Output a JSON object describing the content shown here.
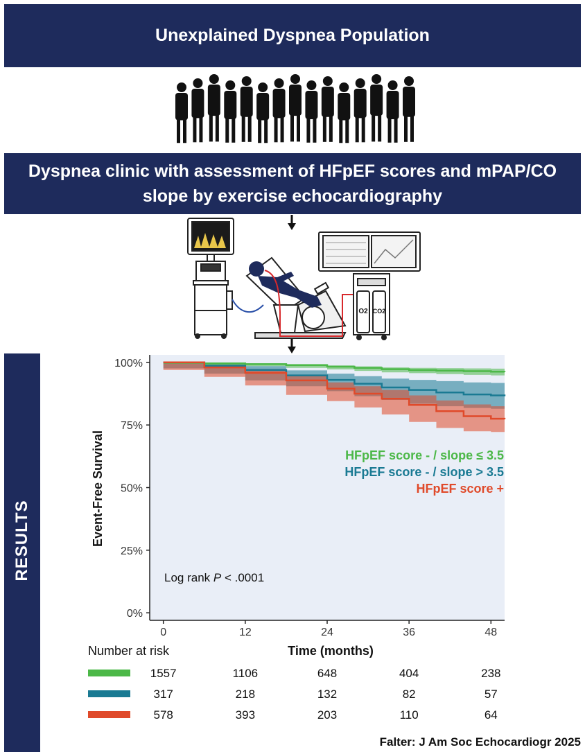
{
  "header": {
    "title": "Unexplained Dyspnea Population",
    "subtitle": "Dyspnea clinic with assessment of HFpEF scores and mPAP/CO slope by exercise echocardiography"
  },
  "section_label": "RESULTS",
  "illustration": {
    "people_count": 15,
    "gas_labels": [
      "O2",
      "CO2"
    ]
  },
  "chart_data": {
    "type": "line",
    "title": "",
    "xlabel": "Time (months)",
    "ylabel": "Event-Free Survival",
    "xlim": [
      -2,
      50
    ],
    "ylim": [
      -3,
      103
    ],
    "x_ticks": [
      0,
      12,
      24,
      36,
      48
    ],
    "y_ticks": [
      0,
      25,
      50,
      75,
      100
    ],
    "y_tick_labels": [
      "0%",
      "25%",
      "50%",
      "75%",
      "100%"
    ],
    "annotation": {
      "text_prefix": "Log rank ",
      "text_italic": "P",
      "text_suffix": " < .0001"
    },
    "series": [
      {
        "name": "HFpEF score - / slope ≤ 3.5",
        "color": "#4cb848",
        "x": [
          0,
          6,
          12,
          18,
          24,
          28,
          32,
          36,
          40,
          44,
          48,
          50
        ],
        "values": [
          100,
          99.6,
          99.3,
          98.9,
          98.3,
          97.8,
          97.3,
          96.9,
          96.7,
          96.5,
          96.3,
          96.2
        ],
        "lower": [
          100,
          99.4,
          99.0,
          98.5,
          97.8,
          97.2,
          96.6,
          96.0,
          95.7,
          95.3,
          95.0,
          94.8
        ],
        "upper": [
          100,
          99.8,
          99.6,
          99.3,
          98.8,
          98.4,
          98.0,
          97.8,
          97.7,
          97.6,
          97.5,
          97.5
        ]
      },
      {
        "name": "HFpEF score - / slope > 3.5",
        "color": "#1a7a93",
        "x": [
          0,
          6,
          12,
          18,
          24,
          28,
          32,
          36,
          40,
          44,
          48,
          50
        ],
        "values": [
          100,
          98.6,
          97.0,
          94.8,
          93.0,
          91.5,
          90.0,
          89.0,
          88.0,
          87.2,
          86.8,
          86.5
        ],
        "lower": [
          100,
          97.6,
          95.5,
          92.8,
          90.5,
          88.5,
          86.5,
          85.0,
          83.5,
          82.5,
          81.8,
          81.5
        ],
        "upper": [
          100,
          99.6,
          98.5,
          96.8,
          95.5,
          94.5,
          93.5,
          93.0,
          92.5,
          92.0,
          91.8,
          91.5
        ]
      },
      {
        "name": "HFpEF score +",
        "color": "#e04a2a",
        "x": [
          0,
          6,
          12,
          18,
          24,
          28,
          32,
          36,
          40,
          44,
          48,
          50
        ],
        "values": [
          100,
          98.0,
          95.8,
          92.8,
          89.5,
          87.5,
          85.5,
          83.0,
          80.5,
          78.5,
          77.5,
          77.3
        ],
        "lower": [
          100,
          97.0,
          94.2,
          90.8,
          87.0,
          84.5,
          82.0,
          79.2,
          76.2,
          73.8,
          72.5,
          72.2
        ],
        "upper": [
          100,
          99.0,
          97.4,
          94.8,
          92.0,
          90.5,
          89.0,
          86.8,
          84.8,
          83.2,
          82.5,
          82.3
        ]
      }
    ],
    "risk_table": {
      "header": "Number at risk",
      "rows": [
        {
          "color": "#4cb848",
          "values": [
            "1557",
            "1106",
            "648",
            "404",
            "238"
          ]
        },
        {
          "color": "#1a7a93",
          "values": [
            "317",
            "218",
            "132",
            "82",
            "57"
          ]
        },
        {
          "color": "#e04a2a",
          "values": [
            "578",
            "393",
            "203",
            "110",
            "64"
          ]
        }
      ]
    }
  },
  "footer": {
    "citation": "Falter: J Am Soc Echocardiogr 2025"
  }
}
